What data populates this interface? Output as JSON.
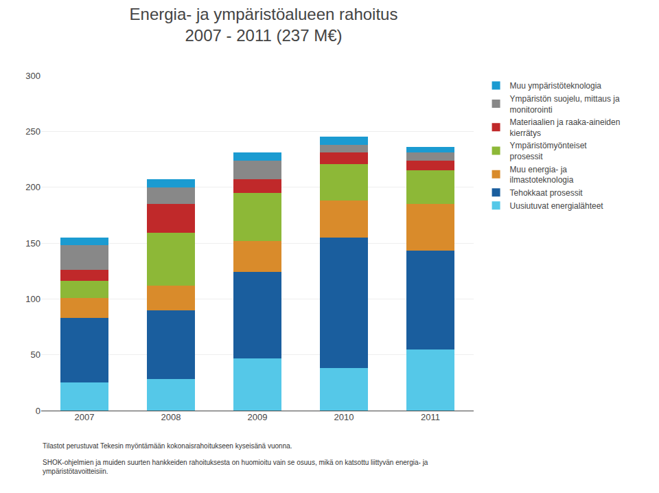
{
  "chart_data": {
    "type": "bar",
    "stacked": true,
    "title": "Energia- ja ympäristöalueen rahoitus",
    "subtitle": "2007 - 2011 (237 M€)",
    "categories": [
      "2007",
      "2008",
      "2009",
      "2010",
      "2011"
    ],
    "series": [
      {
        "name": "Uusiutuvat energialähteet",
        "color": "#55C8E8",
        "values": [
          25,
          28,
          47,
          38,
          55
        ]
      },
      {
        "name": "Tehokkaat prosessit",
        "color": "#1A5E9E",
        "values": [
          58,
          62,
          77,
          117,
          88
        ]
      },
      {
        "name": "Muu energia- ja\nilmastoteknologia",
        "color": "#D98B2B",
        "values": [
          18,
          22,
          28,
          33,
          42
        ]
      },
      {
        "name": "Ympäristömyönteiset\nprosessit",
        "color": "#8DB837",
        "values": [
          15,
          47,
          43,
          33,
          30
        ]
      },
      {
        "name": "Materiaalien ja raaka-aineiden\nkierrätys",
        "color": "#C0292A",
        "values": [
          10,
          26,
          12,
          10,
          9
        ]
      },
      {
        "name": "Ympäristön suojelu, mittaus ja\nmonitorointi",
        "color": "#888888",
        "values": [
          22,
          15,
          17,
          7,
          7
        ]
      },
      {
        "name": "Muu ympäristöteknologia",
        "color": "#1B9BD1",
        "values": [
          7,
          7,
          7,
          7,
          5
        ]
      }
    ],
    "ylim": [
      0,
      300
    ],
    "yticks": [
      0,
      50,
      100,
      150,
      200,
      250,
      300
    ],
    "grid": true,
    "legend": "right",
    "annotations": [
      "Tilastot perustuvat Tekesin myöntämään kokonaisrahoitukseen kyseisänä vuonna.",
      "SHOK-ohjelmien ja muiden suurten hankkeiden rahoituksesta on huomioitu vain se osuus, mikä on katsottu liittyvän energia- ja\nympäristötavoitteisiin."
    ]
  }
}
